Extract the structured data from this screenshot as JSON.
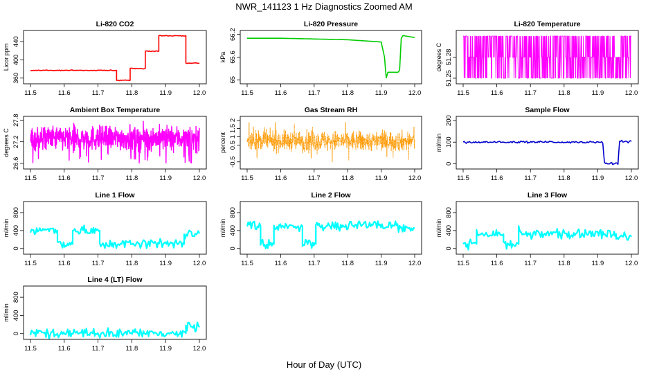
{
  "figure": {
    "title": "NWR_141123  1 Hz Diagnostics Zoomed AM",
    "xlabel": "Hour of Day (UTC)"
  },
  "chart_data": [
    {
      "id": "co2",
      "type": "line",
      "title": "Li-820 CO2",
      "ylabel": "Licor ppm",
      "color": "#ff0000",
      "xlim": [
        11.5,
        12.0
      ],
      "ylim": [
        352,
        460
      ],
      "yticks": [
        360,
        400,
        440
      ],
      "xticks": [
        11.5,
        11.6,
        11.7,
        11.8,
        11.9,
        12.0
      ],
      "series": [
        {
          "x": [
            11.5,
            11.755,
            11.755,
            11.795,
            11.795,
            11.84,
            11.84,
            11.88,
            11.88,
            11.96,
            11.96,
            12.0
          ],
          "y": [
            377,
            377,
            355,
            355,
            381,
            381,
            419,
            419,
            453,
            453,
            393,
            393
          ]
        }
      ]
    },
    {
      "id": "pressure",
      "type": "line",
      "title": "Li-820 Pressure",
      "ylabel": "kPa",
      "color": "#00cc00",
      "xlim": [
        11.5,
        12.0
      ],
      "ylim": [
        64.95,
        66.25
      ],
      "yticks": [
        65.0,
        65.6,
        66.2
      ],
      "xticks": [
        11.5,
        11.6,
        11.7,
        11.8,
        11.9,
        12.0
      ],
      "series": [
        {
          "x": [
            11.5,
            11.6,
            11.7,
            11.8,
            11.9,
            11.91,
            11.915,
            11.92,
            11.95,
            11.955,
            11.96,
            11.965,
            12.0
          ],
          "y": [
            66.1,
            66.1,
            66.08,
            66.06,
            66.0,
            65.6,
            65.05,
            65.2,
            65.2,
            65.25,
            66.1,
            66.17,
            66.12
          ]
        }
      ]
    },
    {
      "id": "temperature",
      "type": "line",
      "title": "Li-820 Temperature",
      "ylabel": "degrees C",
      "color": "#ff00ff",
      "xlim": [
        11.5,
        12.0
      ],
      "ylim": [
        51.245,
        51.315
      ],
      "yticks": [
        51.25,
        51.28
      ],
      "xticks": [
        11.5,
        11.6,
        11.7,
        11.8,
        11.9,
        12.0
      ],
      "series": [
        {
          "levels": [
            51.25,
            51.28,
            51.31
          ],
          "note_values": "digitized noise between levels"
        }
      ]
    },
    {
      "id": "ambient",
      "type": "line",
      "title": "Ambient Box Temperature",
      "ylabel": "degrees C",
      "color": "#ff00ff",
      "xlim": [
        11.5,
        12.0
      ],
      "ylim": [
        26.5,
        27.85
      ],
      "yticks": [
        26.6,
        27.2,
        27.8
      ],
      "xticks": [
        11.5,
        11.6,
        11.7,
        11.8,
        11.9,
        12.0
      ],
      "series": [
        {
          "mean": 27.3,
          "min": 26.6,
          "max": 27.85
        }
      ]
    },
    {
      "id": "rh",
      "type": "scatter",
      "title": "Gas Stream RH",
      "ylabel": "percent",
      "color": "#ff9900",
      "xlim": [
        11.5,
        12.0
      ],
      "ylim": [
        -0.8,
        2.1
      ],
      "yticks": [
        -0.5,
        0.5,
        1.0,
        1.5,
        2.0
      ],
      "xticks": [
        11.5,
        11.6,
        11.7,
        11.8,
        11.9,
        12.0
      ],
      "series": [
        {
          "mean": 0.75,
          "min": -0.7,
          "max": 2.05
        }
      ]
    },
    {
      "id": "sample",
      "type": "line",
      "title": "Sample Flow",
      "ylabel": "ml/min",
      "color": "#0000cc",
      "xlim": [
        11.5,
        12.0
      ],
      "ylim": [
        -15,
        210
      ],
      "yticks": [
        0,
        100,
        200
      ],
      "xticks": [
        11.5,
        11.6,
        11.7,
        11.8,
        11.9,
        12.0
      ],
      "series": [
        {
          "x": [
            11.5,
            11.915,
            11.92,
            11.96,
            11.965,
            12.0
          ],
          "y": [
            100,
            100,
            0,
            0,
            105,
            103
          ]
        }
      ]
    },
    {
      "id": "line1",
      "type": "line",
      "title": "Line 1 Flow",
      "ylabel": "ml/min",
      "color": "#00ffff",
      "xlim": [
        11.5,
        12.0
      ],
      "ylim": [
        -80,
        1000
      ],
      "yticks": [
        0,
        400,
        800
      ],
      "xticks": [
        11.5,
        11.6,
        11.7,
        11.8,
        11.9,
        12.0
      ],
      "series": [
        {
          "x": [
            11.5,
            11.58,
            11.58,
            11.625,
            11.625,
            11.705,
            11.705,
            11.955,
            11.955,
            12.0
          ],
          "y": [
            400,
            400,
            100,
            100,
            400,
            400,
            100,
            100,
            330,
            330
          ]
        }
      ]
    },
    {
      "id": "line2",
      "type": "line",
      "title": "Line 2 Flow",
      "ylabel": "ml/min",
      "color": "#00ffff",
      "xlim": [
        11.5,
        12.0
      ],
      "ylim": [
        -80,
        1000
      ],
      "yticks": [
        0,
        400,
        800
      ],
      "xticks": [
        11.5,
        11.6,
        11.7,
        11.8,
        11.9,
        12.0
      ],
      "series": [
        {
          "x": [
            11.5,
            11.54,
            11.54,
            11.58,
            11.58,
            11.665,
            11.665,
            11.705,
            11.705,
            11.955,
            11.955,
            12.0
          ],
          "y": [
            500,
            500,
            100,
            100,
            500,
            500,
            100,
            100,
            510,
            510,
            450,
            450
          ]
        }
      ]
    },
    {
      "id": "line3",
      "type": "line",
      "title": "Line 3 Flow",
      "ylabel": "ml/min",
      "color": "#00ffff",
      "xlim": [
        11.5,
        12.0
      ],
      "ylim": [
        -80,
        1000
      ],
      "yticks": [
        0,
        400,
        800
      ],
      "xticks": [
        11.5,
        11.6,
        11.7,
        11.8,
        11.9,
        12.0
      ],
      "series": [
        {
          "x": [
            11.5,
            11.54,
            11.54,
            11.545,
            11.55,
            11.62,
            11.62,
            11.665,
            11.665,
            11.67,
            11.675,
            11.955,
            11.955,
            12.0
          ],
          "y": [
            100,
            100,
            450,
            310,
            320,
            320,
            100,
            100,
            480,
            320,
            320,
            320,
            260,
            260
          ]
        }
      ]
    },
    {
      "id": "line4",
      "type": "line",
      "title": "Line 4 (LT) Flow",
      "ylabel": "ml/min",
      "color": "#00ffff",
      "xlim": [
        11.5,
        12.0
      ],
      "ylim": [
        -80,
        1000
      ],
      "yticks": [
        0,
        400,
        800
      ],
      "xticks": [
        11.5,
        11.6,
        11.7,
        11.8,
        11.9,
        12.0
      ],
      "series": [
        {
          "x": [
            11.5,
            11.96,
            11.96,
            12.0
          ],
          "y": [
            10,
            10,
            140,
            140
          ]
        }
      ]
    }
  ]
}
